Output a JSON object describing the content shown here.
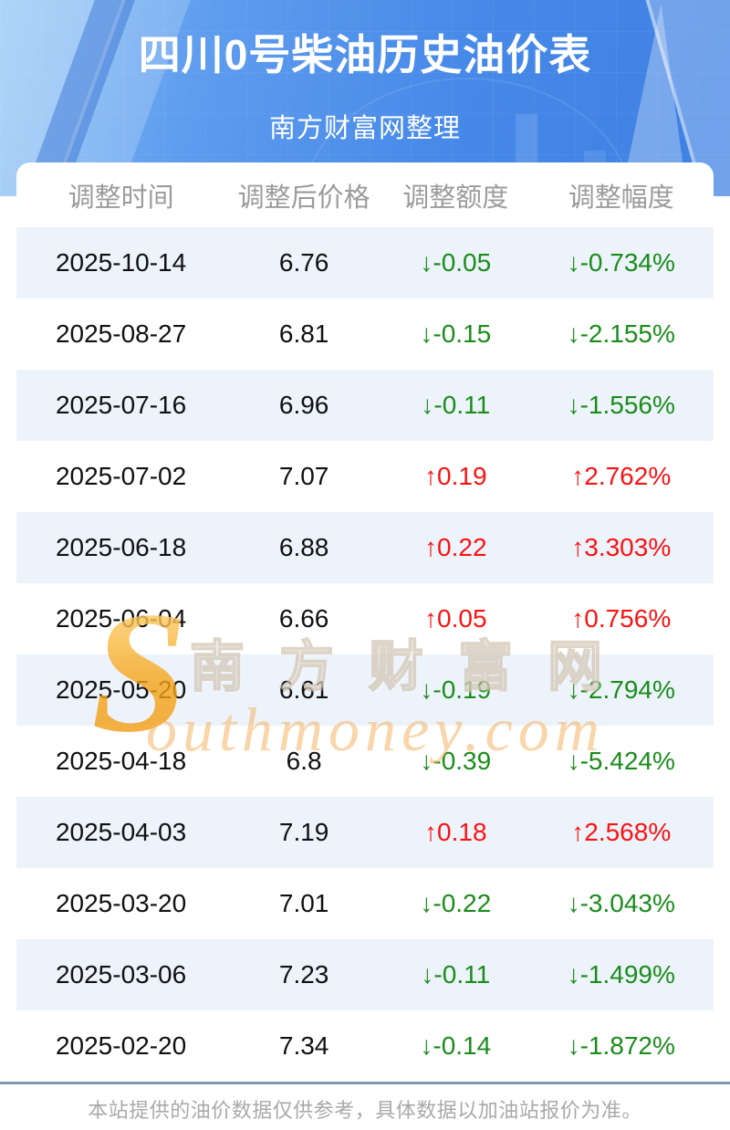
{
  "hero": {
    "title": "四川0号柴油历史油价表",
    "subtitle": "南方财富网整理"
  },
  "chart_data": {
    "type": "table",
    "title": "四川0号柴油历史油价表",
    "subtitle": "南方财富网整理",
    "columns": [
      "调整时间",
      "调整后价格",
      "调整额度",
      "调整幅度"
    ],
    "rows": [
      {
        "date": "2025-10-14",
        "price": "6.76",
        "change": "↓-0.05",
        "pct": "↓-0.734%",
        "direction": "down"
      },
      {
        "date": "2025-08-27",
        "price": "6.81",
        "change": "↓-0.15",
        "pct": "↓-2.155%",
        "direction": "down"
      },
      {
        "date": "2025-07-16",
        "price": "6.96",
        "change": "↓-0.11",
        "pct": "↓-1.556%",
        "direction": "down"
      },
      {
        "date": "2025-07-02",
        "price": "7.07",
        "change": "↑0.19",
        "pct": "↑2.762%",
        "direction": "up"
      },
      {
        "date": "2025-06-18",
        "price": "6.88",
        "change": "↑0.22",
        "pct": "↑3.303%",
        "direction": "up"
      },
      {
        "date": "2025-06-04",
        "price": "6.66",
        "change": "↑0.05",
        "pct": "↑0.756%",
        "direction": "up"
      },
      {
        "date": "2025-05-20",
        "price": "6.61",
        "change": "↓-0.19",
        "pct": "↓-2.794%",
        "direction": "down"
      },
      {
        "date": "2025-04-18",
        "price": "6.8",
        "change": "↓-0.39",
        "pct": "↓-5.424%",
        "direction": "down"
      },
      {
        "date": "2025-04-03",
        "price": "7.19",
        "change": "↑0.18",
        "pct": "↑2.568%",
        "direction": "up"
      },
      {
        "date": "2025-03-20",
        "price": "7.01",
        "change": "↓-0.22",
        "pct": "↓-3.043%",
        "direction": "down"
      },
      {
        "date": "2025-03-06",
        "price": "7.23",
        "change": "↓-0.11",
        "pct": "↓-1.499%",
        "direction": "down"
      },
      {
        "date": "2025-02-20",
        "price": "7.34",
        "change": "↓-0.14",
        "pct": "↓-1.872%",
        "direction": "down"
      }
    ]
  },
  "watermark": {
    "initial": "S",
    "cn": "南方财富网",
    "en": "outhmoney.com"
  },
  "footer": {
    "note": "本站提供的油价数据仅供参考，具体数据以加油站报价为准。"
  },
  "colors": {
    "up_red": "#fb1212",
    "down_green": "#1a8c1a",
    "header_gray": "#9b9b9b",
    "row_alt_blue": "#edf3fb",
    "hero_blue": "#4689e8",
    "divider_blue": "#7f99b2"
  }
}
